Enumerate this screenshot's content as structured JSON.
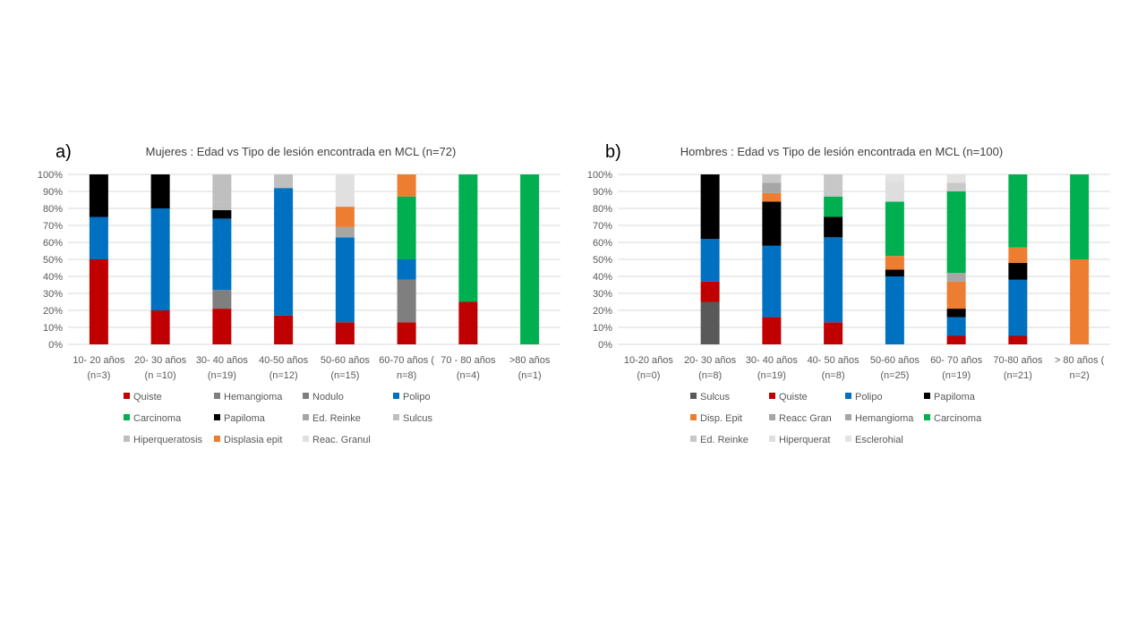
{
  "chart_data": [
    {
      "type": "bar",
      "stacked": true,
      "panel_label": "a)",
      "title": "Mujeres : Edad vs Tipo de lesión  encontrada en MCL (n=72)",
      "ylim": [
        0,
        100
      ],
      "yticks": [
        "0%",
        "10%",
        "20%",
        "30%",
        "40%",
        "50%",
        "60%",
        "70%",
        "80%",
        "90%",
        "100%"
      ],
      "grid": true,
      "legend_position": "bottom",
      "categories": [
        {
          "line1": "10- 20 años",
          "line2": "(n=3)"
        },
        {
          "line1": "20- 30 años",
          "line2": "(n =10)"
        },
        {
          "line1": "30- 40 años",
          "line2": "(n=19)"
        },
        {
          "line1": "40-50 años",
          "line2": "(n=12)"
        },
        {
          "line1": "50-60 años",
          "line2": "(n=15)"
        },
        {
          "line1": "60-70 años (",
          "line2": "n=8)"
        },
        {
          "line1": "70 - 80 años",
          "line2": "(n=4)"
        },
        {
          "line1": ">80 años",
          "line2": "(n=1)"
        }
      ],
      "series": [
        {
          "name": "Quiste",
          "color": "#c00000",
          "values": [
            50,
            20,
            21,
            17,
            13,
            13,
            25,
            0
          ]
        },
        {
          "name": "Hemangioma",
          "color": "#808080",
          "values": [
            0,
            0,
            0,
            0,
            0,
            0,
            0,
            0
          ]
        },
        {
          "name": "Nodulo",
          "color": "#7f7f7f",
          "values": [
            0,
            0,
            11,
            0,
            0,
            25,
            0,
            0
          ]
        },
        {
          "name": "Polipo",
          "color": "#0070c0",
          "values": [
            25,
            60,
            42,
            75,
            50,
            12,
            0,
            0
          ]
        },
        {
          "name": "Carcinoma",
          "color": "#00b050",
          "values": [
            0,
            0,
            0,
            0,
            0,
            37,
            75,
            100
          ]
        },
        {
          "name": "Papiloma",
          "color": "#000000",
          "values": [
            25,
            20,
            5,
            0,
            0,
            0,
            0,
            0
          ]
        },
        {
          "name": "Ed. Reinke",
          "color": "#a6a6a6",
          "values": [
            0,
            0,
            0,
            0,
            6,
            0,
            0,
            0
          ]
        },
        {
          "name": "Sulcus",
          "color": "#bfbfbf",
          "values": [
            0,
            0,
            5,
            0,
            0,
            0,
            0,
            0
          ]
        },
        {
          "name": "Hiperqueratosis",
          "color": "#bfbfbf",
          "values": [
            0,
            0,
            16,
            8,
            0,
            0,
            0,
            0
          ]
        },
        {
          "name": "Displasia epit",
          "color": "#ed7d31",
          "values": [
            0,
            0,
            0,
            0,
            12,
            13,
            0,
            0
          ]
        },
        {
          "name": "Reac. Granul",
          "color": "#e0e0e0",
          "values": [
            0,
            0,
            0,
            0,
            19,
            0,
            0,
            0
          ]
        }
      ]
    },
    {
      "type": "bar",
      "stacked": true,
      "panel_label": "b)",
      "title": "Hombres : Edad vs Tipo de lesión  encontrada en MCL (n=100)",
      "ylim": [
        0,
        100
      ],
      "yticks": [
        "0%",
        "10%",
        "20%",
        "30%",
        "40%",
        "50%",
        "60%",
        "70%",
        "80%",
        "90%",
        "100%"
      ],
      "grid": true,
      "legend_position": "bottom",
      "categories": [
        {
          "line1": "10-20 años",
          "line2": "(n=0)"
        },
        {
          "line1": "20- 30 años",
          "line2": "(n=8)"
        },
        {
          "line1": "30- 40 años",
          "line2": "(n=19)"
        },
        {
          "line1": "40- 50 años",
          "line2": "(n=8)"
        },
        {
          "line1": "50-60 años",
          "line2": "(n=25)"
        },
        {
          "line1": "60- 70 años",
          "line2": "(n=19)"
        },
        {
          "line1": "70-80 años",
          "line2": "(n=21)"
        },
        {
          "line1": "> 80 años (",
          "line2": "n=2)"
        }
      ],
      "series": [
        {
          "name": "Sulcus",
          "color": "#595959",
          "values": [
            0,
            25,
            0,
            0,
            0,
            0,
            0,
            0
          ]
        },
        {
          "name": "Quiste",
          "color": "#c00000",
          "values": [
            0,
            12,
            16,
            13,
            0,
            5,
            5,
            0
          ]
        },
        {
          "name": "Polipo",
          "color": "#0070c0",
          "values": [
            0,
            25,
            42,
            50,
            40,
            11,
            33,
            0
          ]
        },
        {
          "name": "Papiloma",
          "color": "#000000",
          "values": [
            0,
            38,
            26,
            12,
            4,
            5,
            10,
            0
          ]
        },
        {
          "name": "Disp. Epit",
          "color": "#ed7d31",
          "values": [
            0,
            0,
            5,
            0,
            8,
            16,
            9,
            50
          ]
        },
        {
          "name": "Reacc Gran",
          "color": "#a6a6a6",
          "values": [
            0,
            0,
            0,
            0,
            0,
            5,
            0,
            0
          ]
        },
        {
          "name": "Hemangioma",
          "color": "#a6a6a6",
          "values": [
            0,
            0,
            6,
            0,
            0,
            0,
            0,
            0
          ]
        },
        {
          "name": "Carcinoma",
          "color": "#00b050",
          "values": [
            0,
            0,
            0,
            12,
            32,
            48,
            43,
            50
          ]
        },
        {
          "name": "Ed. Reinke",
          "color": "#c8c8c8",
          "values": [
            0,
            0,
            5,
            13,
            0,
            5,
            0,
            0
          ]
        },
        {
          "name": "Hiperquerat",
          "color": "#dedede",
          "values": [
            0,
            0,
            0,
            0,
            12,
            0,
            0,
            0
          ]
        },
        {
          "name": "Esclerohial",
          "color": "#e3e3e3",
          "values": [
            0,
            0,
            0,
            0,
            4,
            5,
            0,
            0
          ]
        }
      ]
    }
  ]
}
